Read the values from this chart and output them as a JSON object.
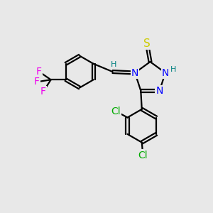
{
  "background_color": "#e8e8e8",
  "atom_colors": {
    "C": "#000000",
    "N": "#0000ff",
    "S": "#cccc00",
    "H": "#008080",
    "F": "#ee00ee",
    "Cl": "#00aa00"
  },
  "bond_color": "#000000",
  "bond_width": 1.6,
  "font_size_atom": 10,
  "font_size_small": 8
}
